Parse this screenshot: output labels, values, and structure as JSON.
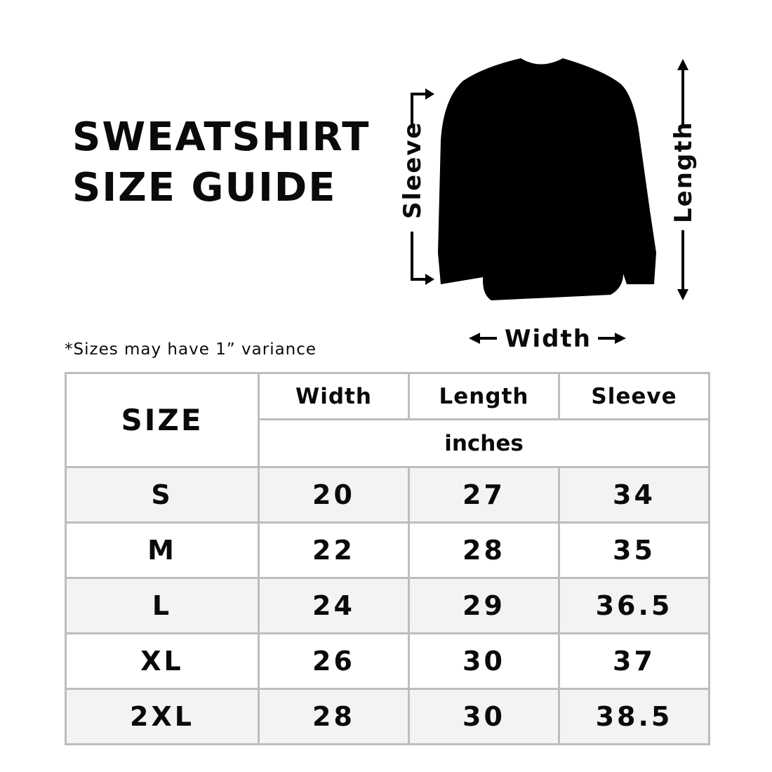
{
  "title": {
    "line1": "SWEATSHIRT",
    "line2": "SIZE GUIDE"
  },
  "note": "*Sizes may have 1” variance",
  "diagram": {
    "sleeve_label": "Sleeve",
    "length_label": "Length",
    "width_label": "Width",
    "garment_color": "#000000"
  },
  "table": {
    "size_header": "SIZE",
    "columns": [
      "Width",
      "Length",
      "Sleeve"
    ],
    "unit": "inches",
    "rows": [
      {
        "size": "S",
        "width": "20",
        "length": "27",
        "sleeve": "34"
      },
      {
        "size": "M",
        "width": "22",
        "length": "28",
        "sleeve": "35"
      },
      {
        "size": "L",
        "width": "24",
        "length": "29",
        "sleeve": "36.5"
      },
      {
        "size": "XL",
        "width": "26",
        "length": "30",
        "sleeve": "37"
      },
      {
        "size": "2XL",
        "width": "28",
        "length": "30",
        "sleeve": "38.5"
      }
    ],
    "stripe_color": "#f3f3f3",
    "border_color": "#bdbdbd"
  }
}
